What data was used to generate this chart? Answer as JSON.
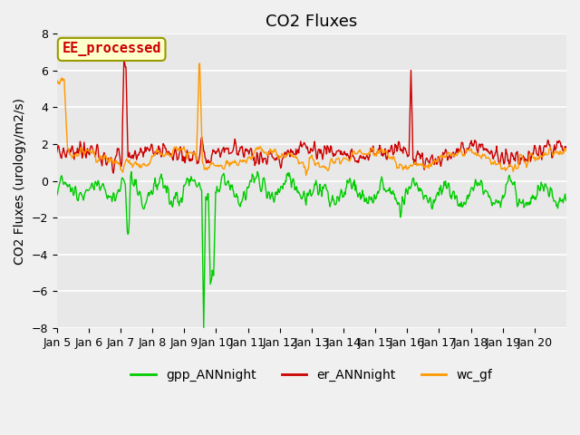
{
  "title": "CO2 Fluxes",
  "ylabel": "CO2 Fluxes (urology/m2/s)",
  "ylim": [
    -8,
    8
  ],
  "yticks": [
    -8,
    -6,
    -4,
    -2,
    0,
    2,
    4,
    6,
    8
  ],
  "x_tick_labels": [
    "Jan 5",
    "Jan 6",
    "Jan 7",
    "Jan 8",
    "Jan 9",
    "Jan 10",
    "Jan 11",
    "Jan 12",
    "Jan 13",
    "Jan 14",
    "Jan 15",
    "Jan 16",
    "Jan 17",
    "Jan 18",
    "Jan 19",
    "Jan 20"
  ],
  "colors": {
    "gpp_ANNnight": "#00cc00",
    "er_ANNnight": "#cc0000",
    "wc_gf": "#ff9900"
  },
  "annotation_text": "EE_processed",
  "annotation_color": "#cc0000",
  "annotation_bg": "#ffffcc",
  "annotation_edge": "#999900",
  "bg_color": "#e8e8e8",
  "fig_bg": "#f0f0f0",
  "title_fontsize": 13,
  "label_fontsize": 10,
  "tick_fontsize": 9,
  "legend_fontsize": 10,
  "linewidth": 1.0,
  "n_per_day": 48,
  "n_days": 16
}
